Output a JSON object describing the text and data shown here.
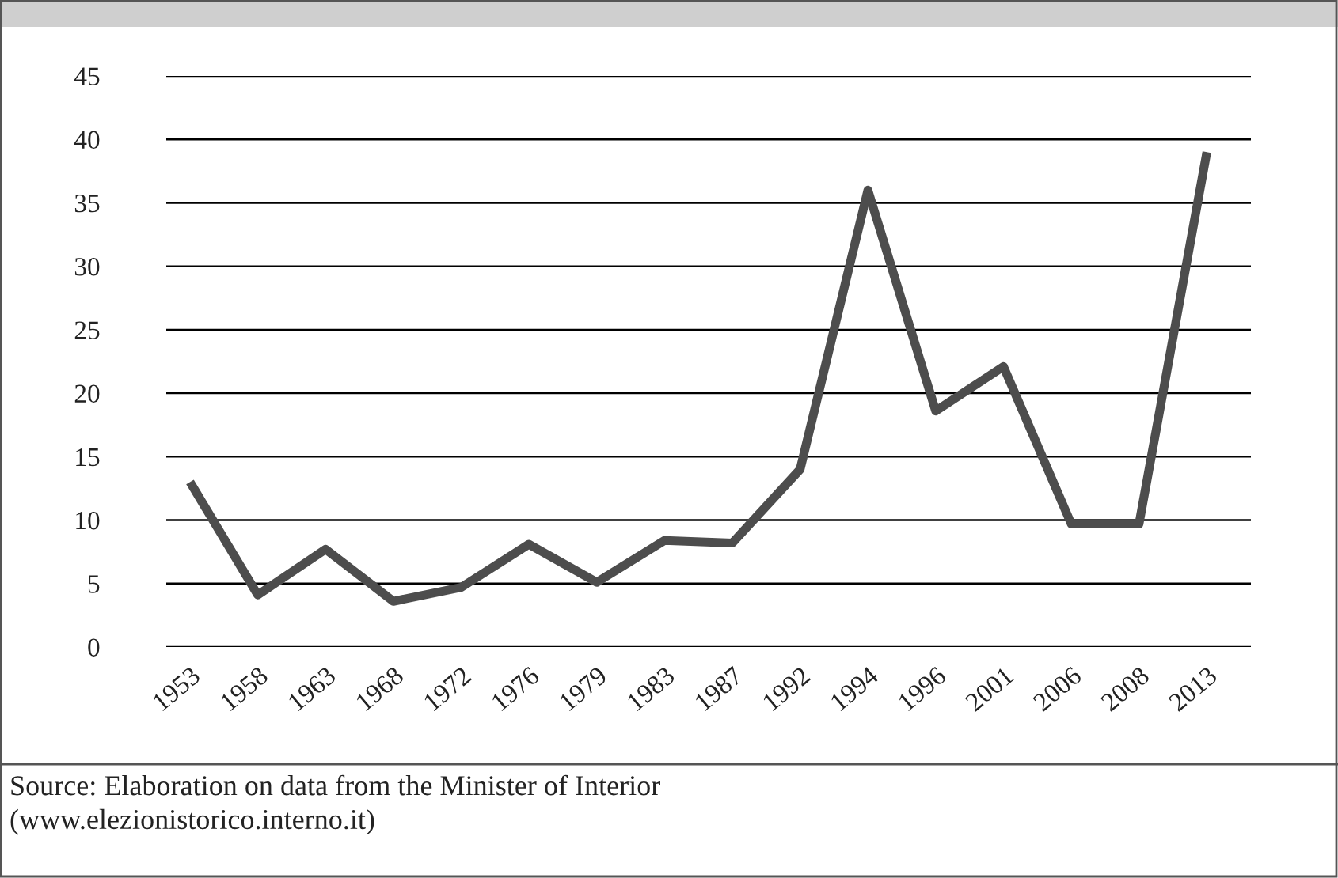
{
  "chart_data": {
    "type": "line",
    "categories": [
      "1953",
      "1958",
      "1963",
      "1968",
      "1972",
      "1976",
      "1979",
      "1983",
      "1987",
      "1992",
      "1994",
      "1996",
      "2001",
      "2006",
      "2008",
      "2013"
    ],
    "series": [
      {
        "color": "#4d4d4d",
        "values": [
          13,
          4.1,
          7.7,
          3.6,
          4.7,
          8.1,
          5.1,
          8.4,
          8.2,
          14,
          36,
          18.6,
          22.1,
          9.7,
          9.7,
          39
        ]
      }
    ],
    "ylim": [
      0,
      45
    ],
    "yticks": [
      0,
      5,
      10,
      15,
      20,
      25,
      30,
      35,
      40,
      45
    ],
    "grid": "y",
    "marker": "none",
    "line_style": "solid",
    "annotations": [
      "Source: Elaboration on data from the Minister of Interior\n(www.elezionistorico.interno.it)"
    ]
  }
}
